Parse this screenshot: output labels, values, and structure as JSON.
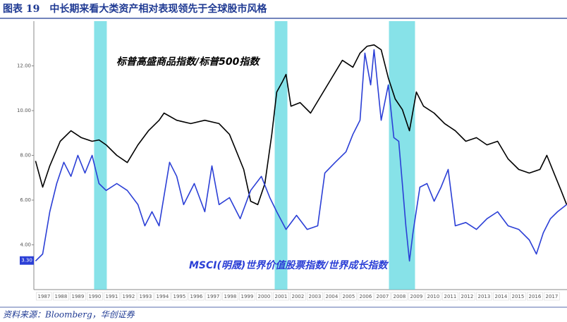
{
  "chart_data": {
    "type": "line",
    "title": "图表 19　中长期来看大类资产相对表现领先于全球股市风格",
    "source": "资料来源：Bloomberg，华创证券",
    "xlim": [
      1986.4,
      2017.9
    ],
    "xticks": [
      1987,
      1988,
      1989,
      1990,
      1991,
      1992,
      1993,
      1994,
      1995,
      1996,
      1997,
      1998,
      1999,
      2000,
      2001,
      2002,
      2003,
      2004,
      2005,
      2006,
      2007,
      2008,
      2009,
      2010,
      2011,
      2012,
      2013,
      2014,
      2015,
      2016,
      2017
    ],
    "ylim": [
      2,
      14
    ],
    "yticks": [
      {
        "value": 4,
        "label": "4.00"
      },
      {
        "value": 6,
        "label": "6.00"
      },
      {
        "value": 8,
        "label": "8.00"
      },
      {
        "value": 10,
        "label": "10.00"
      },
      {
        "value": 12,
        "label": "12.00"
      }
    ],
    "shaded_periods": [
      [
        1989.96,
        1990.71
      ],
      [
        2000.63,
        2001.38
      ],
      [
        2007.38,
        2008.92
      ]
    ],
    "shade_color": "#5fd8e0",
    "annotations": [
      {
        "text": "3.30",
        "y": 3.3
      }
    ],
    "series": [
      {
        "name": "标普高盛商品指数/标普500指数",
        "color": "#000000",
        "x": [
          1986.5,
          1986.92,
          1987.34,
          1987.96,
          1988.59,
          1989.21,
          1989.84,
          1990.25,
          1990.67,
          1991.3,
          1991.92,
          1992.55,
          1993.17,
          1993.8,
          1994.09,
          1994.84,
          1995.67,
          1996.5,
          1997.34,
          1997.96,
          1998.38,
          1998.8,
          1999.21,
          1999.63,
          2000.05,
          2000.46,
          2000.75,
          2001.09,
          2001.3,
          2001.59,
          2002.13,
          2002.75,
          2003.38,
          2004.0,
          2004.63,
          2005.25,
          2005.67,
          2006.09,
          2006.5,
          2006.92,
          2007.34,
          2007.75,
          2008.17,
          2008.59,
          2009.0,
          2009.42,
          2010.05,
          2010.67,
          2011.3,
          2011.92,
          2012.55,
          2013.17,
          2013.8,
          2014.42,
          2015.05,
          2015.67,
          2016.3,
          2016.71,
          2017.13,
          2017.55,
          2017.88
        ],
        "values": [
          7.75,
          6.58,
          7.53,
          8.63,
          9.1,
          8.79,
          8.63,
          8.69,
          8.47,
          8.0,
          7.68,
          8.47,
          9.1,
          9.57,
          9.89,
          9.57,
          9.42,
          9.57,
          9.42,
          8.94,
          8.16,
          7.37,
          5.95,
          5.8,
          6.74,
          8.94,
          10.83,
          11.3,
          11.62,
          10.2,
          10.36,
          9.89,
          10.68,
          11.46,
          12.25,
          11.94,
          12.57,
          12.88,
          12.94,
          12.72,
          11.46,
          10.52,
          10.05,
          9.1,
          10.83,
          10.2,
          9.89,
          9.42,
          9.1,
          8.63,
          8.79,
          8.47,
          8.63,
          7.84,
          7.37,
          7.21,
          7.37,
          8.0,
          7.21,
          6.43,
          5.8
        ]
      },
      {
        "name": "MSCI(明晟)世界价值股票指数/世界成长指数",
        "color": "#2b3fd6",
        "x": [
          1986.5,
          1986.92,
          1987.34,
          1987.75,
          1988.17,
          1988.59,
          1989.0,
          1989.42,
          1989.84,
          1990.25,
          1990.67,
          1991.3,
          1991.92,
          1992.55,
          1992.96,
          1993.38,
          1993.8,
          1994.42,
          1994.84,
          1995.25,
          1995.88,
          1996.5,
          1996.92,
          1997.34,
          1997.96,
          1998.59,
          1999.21,
          1999.84,
          2000.34,
          2000.75,
          2001.3,
          2001.92,
          2002.55,
          2003.17,
          2003.59,
          2004.21,
          2004.84,
          2005.25,
          2005.67,
          2005.96,
          2006.3,
          2006.5,
          2006.92,
          2007.34,
          2007.67,
          2007.96,
          2008.17,
          2008.38,
          2008.59,
          2008.8,
          2009.21,
          2009.63,
          2010.05,
          2010.46,
          2010.88,
          2011.3,
          2011.92,
          2012.55,
          2013.17,
          2013.8,
          2014.42,
          2015.05,
          2015.67,
          2016.09,
          2016.5,
          2016.92,
          2017.34,
          2017.88
        ],
        "values": [
          3.28,
          3.59,
          5.48,
          6.74,
          7.69,
          7.06,
          8.0,
          7.21,
          8.0,
          6.74,
          6.43,
          6.74,
          6.43,
          5.8,
          4.85,
          5.48,
          4.85,
          7.69,
          7.06,
          5.8,
          6.74,
          5.48,
          7.53,
          5.8,
          6.11,
          5.17,
          6.43,
          7.06,
          6.11,
          5.48,
          4.69,
          5.32,
          4.69,
          4.85,
          7.21,
          7.69,
          8.16,
          8.94,
          9.57,
          12.57,
          11.15,
          12.72,
          9.57,
          11.15,
          8.79,
          8.63,
          6.74,
          4.85,
          3.28,
          4.54,
          6.58,
          6.74,
          5.95,
          6.58,
          7.37,
          4.85,
          5.0,
          4.69,
          5.17,
          5.48,
          4.85,
          4.69,
          4.22,
          3.59,
          4.54,
          5.17,
          5.48,
          5.8
        ]
      }
    ]
  }
}
